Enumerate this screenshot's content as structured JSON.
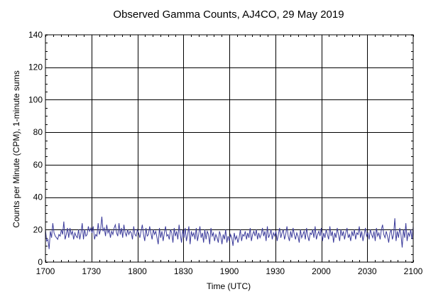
{
  "chart_data": {
    "type": "line",
    "title": "Observed Gamma Counts, AJ4CO, 29 May 2019",
    "xlabel": "Time (UTC)",
    "ylabel": "Counts per Minute (CPM), 1-minute sums",
    "xlim": [
      0,
      240
    ],
    "ylim": [
      0,
      140
    ],
    "x_ticks": [
      {
        "value": 0,
        "label": "1700"
      },
      {
        "value": 30,
        "label": "1730"
      },
      {
        "value": 60,
        "label": "1800"
      },
      {
        "value": 90,
        "label": "1830"
      },
      {
        "value": 120,
        "label": "1900"
      },
      {
        "value": 150,
        "label": "1930"
      },
      {
        "value": 180,
        "label": "2000"
      },
      {
        "value": 210,
        "label": "2030"
      },
      {
        "value": 240,
        "label": "2100"
      }
    ],
    "y_ticks": [
      0,
      20,
      40,
      60,
      80,
      100,
      120,
      140
    ],
    "x_minor_step": 5,
    "y_minor_step": 5,
    "grid": true,
    "series": [
      {
        "color": "#3a3a9a",
        "values": [
          20,
          13,
          14,
          8,
          19,
          15,
          24,
          18,
          16,
          15,
          14,
          17,
          16,
          20,
          17,
          25,
          14,
          17,
          21,
          15,
          21,
          17,
          19,
          14,
          18,
          16,
          15,
          20,
          14,
          18,
          24,
          14,
          20,
          16,
          17,
          22,
          19,
          21,
          18,
          22,
          14,
          17,
          16,
          24,
          17,
          20,
          28,
          19,
          21,
          16,
          23,
          18,
          20,
          15,
          19,
          17,
          21,
          23,
          18,
          16,
          24,
          17,
          21,
          15,
          23,
          18,
          16,
          20,
          17,
          19,
          18,
          14,
          22,
          17,
          16,
          20,
          18,
          15,
          19,
          23,
          17,
          13,
          21,
          16,
          17,
          22,
          18,
          14,
          20,
          17,
          19,
          15,
          11,
          21,
          15,
          19,
          13,
          18,
          22,
          16,
          17,
          14,
          20,
          18,
          12,
          21,
          16,
          19,
          14,
          23,
          17,
          12,
          20,
          15,
          21,
          13,
          17,
          22,
          11,
          19,
          16,
          18,
          14,
          21,
          13,
          17,
          22,
          15,
          18,
          12,
          20,
          14,
          19,
          17,
          11,
          21,
          16,
          18,
          13,
          17,
          15,
          12,
          19,
          16,
          11,
          17,
          14,
          20,
          12,
          16,
          13,
          17,
          15,
          10,
          18,
          14,
          16,
          12,
          15,
          20,
          13,
          17,
          16,
          19,
          14,
          18,
          15,
          21,
          13,
          17,
          19,
          16,
          20,
          14,
          18,
          15,
          17,
          21,
          16,
          19,
          13,
          22,
          15,
          17,
          20,
          14,
          18,
          16,
          19,
          13,
          17,
          21,
          15,
          18,
          20,
          14,
          17,
          22,
          16,
          13,
          19,
          15,
          21,
          17,
          14,
          18,
          16,
          12,
          20,
          15,
          17,
          19,
          14,
          21,
          16,
          13,
          18,
          17,
          20,
          15,
          22,
          14,
          17,
          19,
          16,
          21,
          13,
          18,
          15,
          20,
          17,
          14,
          22,
          16,
          19,
          12,
          18,
          15,
          21,
          17,
          13,
          20,
          16,
          19,
          14,
          18,
          21,
          15,
          17,
          13,
          19,
          16,
          20,
          14,
          18,
          17,
          22,
          15,
          19,
          13,
          17,
          21,
          16,
          18,
          14,
          20,
          17,
          15,
          19,
          13,
          21,
          16,
          18,
          14,
          20,
          23,
          17,
          15,
          19,
          16,
          12,
          18,
          20,
          14,
          17,
          27,
          13,
          19,
          15,
          21,
          17,
          9,
          20,
          15,
          24,
          13,
          18,
          16,
          20,
          14,
          22
        ]
      }
    ]
  }
}
